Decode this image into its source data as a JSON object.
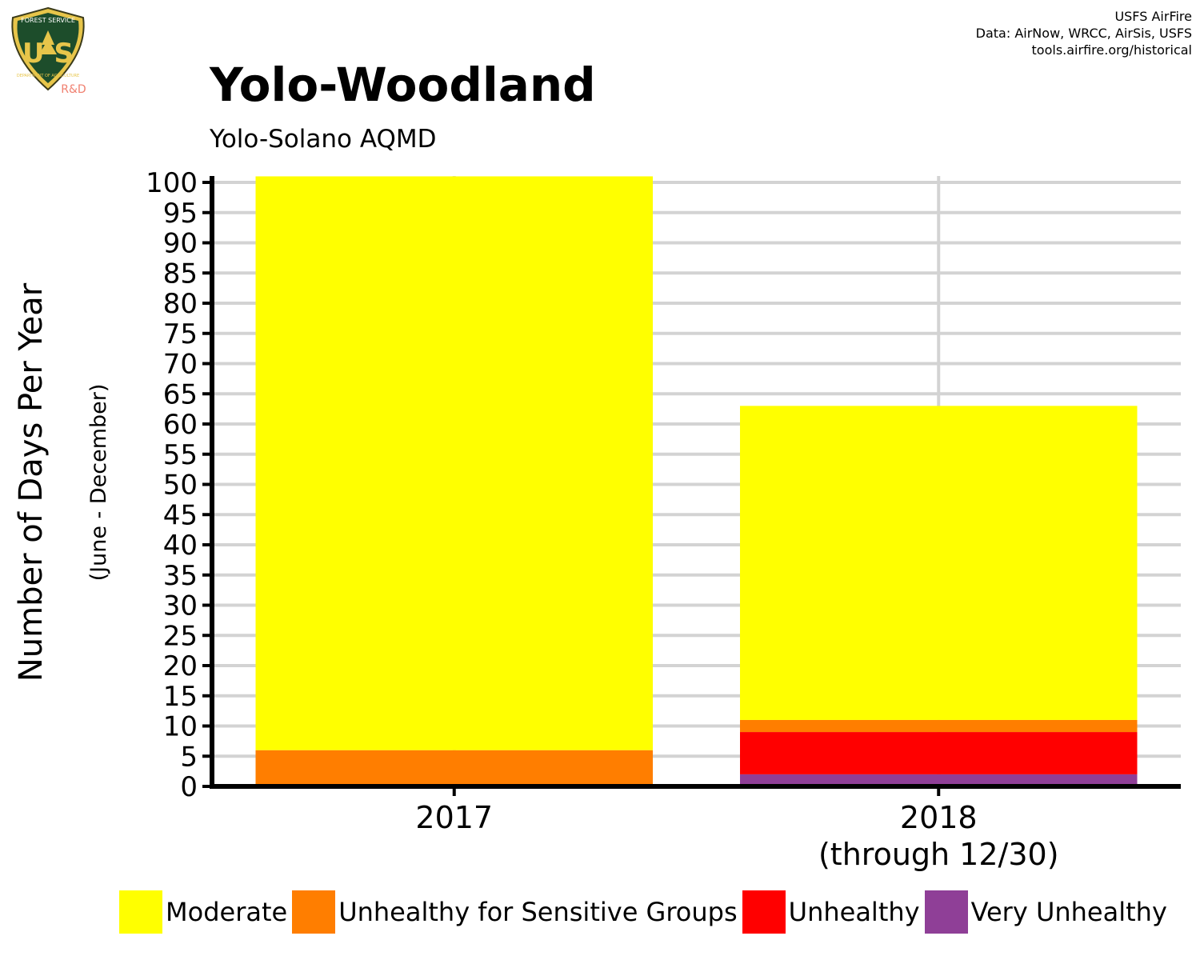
{
  "logo": {
    "top_text": "FOREST SERVICE",
    "letters": "U S",
    "bottom_text": "DEPARTMENT OF AGRICULTURE",
    "badge": "R&D"
  },
  "credits": {
    "line1": "USFS AirFire",
    "line2": "Data: AirNow, WRCC, AirSis, USFS",
    "line3": "tools.airfire.org/historical"
  },
  "colors": {
    "Moderate": "#FFFF00",
    "Unhealthy for Sensitive Groups": "#FF7E00",
    "Unhealthy": "#FF0000",
    "Very Unhealthy": "#8F3F97",
    "grid": "#d3d3d3",
    "axis": "#000000"
  },
  "chart_data": {
    "type": "bar",
    "stacked": true,
    "title": "Yolo-Woodland",
    "subtitle": "Yolo-Solano AQMD",
    "ylabel": "Number of Days Per Year",
    "ylabel_sub": "(June - December)",
    "xlabel": "",
    "categories": [
      "2017",
      "2018\n(through 12/30)"
    ],
    "ylim": [
      0,
      100
    ],
    "yticks": [
      0,
      5,
      10,
      15,
      20,
      25,
      30,
      35,
      40,
      45,
      50,
      55,
      60,
      65,
      70,
      75,
      80,
      85,
      90,
      95,
      100
    ],
    "grid": true,
    "legend_position": "bottom",
    "series": [
      {
        "name": "Very Unhealthy",
        "values": [
          0,
          2
        ]
      },
      {
        "name": "Unhealthy",
        "values": [
          0,
          7
        ]
      },
      {
        "name": "Unhealthy for Sensitive Groups",
        "values": [
          6,
          2
        ]
      },
      {
        "name": "Moderate",
        "values": [
          95,
          52
        ]
      }
    ],
    "legend_order": [
      "Moderate",
      "Unhealthy for Sensitive Groups",
      "Unhealthy",
      "Very Unhealthy"
    ]
  }
}
